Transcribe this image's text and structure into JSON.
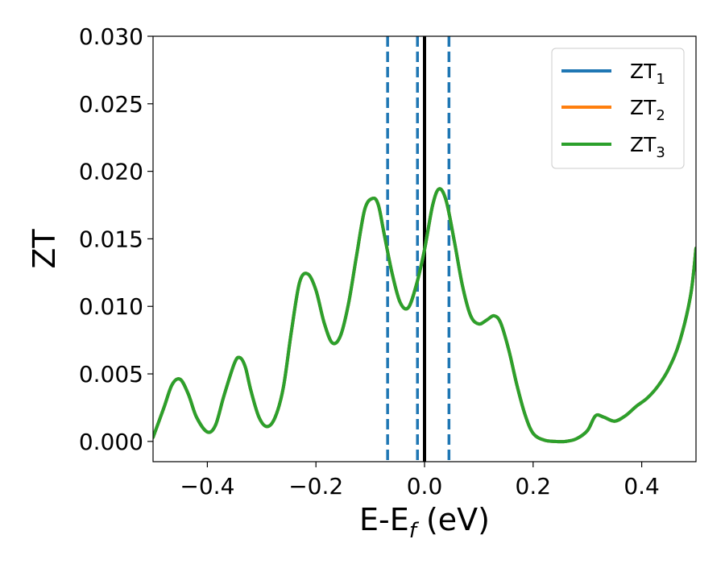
{
  "chart_data": {
    "type": "line",
    "xlabel_main": "E-E",
    "xlabel_sub": "f",
    "xlabel_tail": " (eV)",
    "ylabel": "ZT",
    "xlim": [
      -0.5,
      0.5
    ],
    "ylim": [
      -0.0015,
      0.03
    ],
    "xticks": [
      {
        "v": -0.4,
        "label": "−0.4"
      },
      {
        "v": -0.2,
        "label": "−0.2"
      },
      {
        "v": 0.0,
        "label": "0.0"
      },
      {
        "v": 0.2,
        "label": "0.2"
      },
      {
        "v": 0.4,
        "label": "0.4"
      }
    ],
    "yticks": [
      {
        "v": 0.0,
        "label": "0.000"
      },
      {
        "v": 0.005,
        "label": "0.005"
      },
      {
        "v": 0.01,
        "label": "0.010"
      },
      {
        "v": 0.015,
        "label": "0.015"
      },
      {
        "v": 0.02,
        "label": "0.020"
      },
      {
        "v": 0.025,
        "label": "0.025"
      },
      {
        "v": 0.03,
        "label": "0.030"
      }
    ],
    "legend_position": "top-right",
    "grid": false,
    "series": [
      {
        "name": "ZT",
        "sub": "1",
        "color": "#1f77b4"
      },
      {
        "name": "ZT",
        "sub": "2",
        "color": "#ff7f0e"
      },
      {
        "name": "ZT",
        "sub": "3",
        "color": "#2ca02c"
      }
    ],
    "curve": {
      "x": [
        -0.5,
        -0.48,
        -0.465,
        -0.45,
        -0.435,
        -0.42,
        -0.4,
        -0.385,
        -0.37,
        -0.35,
        -0.34,
        -0.33,
        -0.32,
        -0.305,
        -0.29,
        -0.275,
        -0.26,
        -0.245,
        -0.23,
        -0.215,
        -0.2,
        -0.185,
        -0.17,
        -0.155,
        -0.14,
        -0.125,
        -0.11,
        -0.095,
        -0.085,
        -0.075,
        -0.06,
        -0.045,
        -0.03,
        -0.015,
        0.0,
        0.015,
        0.027,
        0.04,
        0.055,
        0.07,
        0.085,
        0.1,
        0.115,
        0.128,
        0.14,
        0.155,
        0.17,
        0.185,
        0.2,
        0.22,
        0.24,
        0.26,
        0.28,
        0.3,
        0.315,
        0.33,
        0.35,
        0.37,
        0.39,
        0.41,
        0.43,
        0.45,
        0.47,
        0.49,
        0.5
      ],
      "y": [
        0.0003,
        0.0025,
        0.0042,
        0.0046,
        0.0035,
        0.0018,
        0.0007,
        0.0012,
        0.0033,
        0.0058,
        0.0062,
        0.0055,
        0.0038,
        0.0018,
        0.0011,
        0.0018,
        0.004,
        0.0082,
        0.0118,
        0.0124,
        0.0112,
        0.0088,
        0.0073,
        0.0078,
        0.0102,
        0.0138,
        0.0172,
        0.018,
        0.0175,
        0.0155,
        0.0125,
        0.0103,
        0.0099,
        0.0116,
        0.0142,
        0.0175,
        0.0187,
        0.0178,
        0.0148,
        0.0115,
        0.0093,
        0.0087,
        0.009,
        0.0093,
        0.0088,
        0.0068,
        0.0042,
        0.002,
        0.0006,
        0.0001,
        0.0,
        0.0,
        0.0002,
        0.0008,
        0.0019,
        0.0018,
        0.0015,
        0.0019,
        0.0026,
        0.0032,
        0.0041,
        0.0054,
        0.0074,
        0.0108,
        0.0143
      ]
    },
    "vlines": [
      {
        "x": 0.0,
        "color": "#000000",
        "style": "solid"
      },
      {
        "x": -0.068,
        "color": "#1f77b4",
        "style": "dashed"
      },
      {
        "x": -0.013,
        "color": "#1f77b4",
        "style": "dashed"
      },
      {
        "x": 0.045,
        "color": "#1f77b4",
        "style": "dashed"
      }
    ]
  }
}
